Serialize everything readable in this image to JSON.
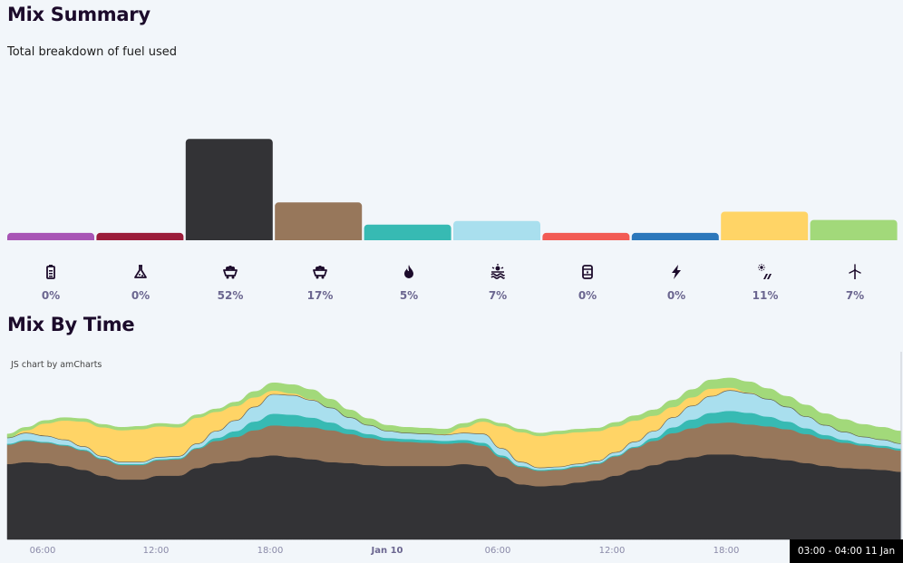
{
  "summary": {
    "title": "Mix Summary",
    "subtitle": "Total breakdown of fuel used"
  },
  "time": {
    "title": "Mix By Time",
    "credit": "JS chart by amCharts",
    "x_ticks": [
      "06:00",
      "12:00",
      "18:00",
      "Jan 10",
      "06:00",
      "12:00",
      "18:00"
    ],
    "tooltip": "03:00 - 04:00 11 Jan"
  },
  "fuels": [
    {
      "icon": "battery-icon",
      "color": "#a855b5",
      "percent": "0%"
    },
    {
      "icon": "flask-icon",
      "color": "#9b1c3a",
      "percent": "0%"
    },
    {
      "icon": "coal-cart-icon",
      "color": "#333336",
      "percent": "52%"
    },
    {
      "icon": "coal-cart-icon",
      "color": "#97775b",
      "percent": "17%"
    },
    {
      "icon": "flame-icon",
      "color": "#37bab3",
      "percent": "5%"
    },
    {
      "icon": "water-wave-icon",
      "color": "#a9dfee",
      "percent": "7%"
    },
    {
      "icon": "fuel-barrel-icon",
      "color": "#f25b54",
      "percent": "0%"
    },
    {
      "icon": "lightning-icon",
      "color": "#2c77bb",
      "percent": "0%"
    },
    {
      "icon": "solar-panel-icon",
      "color": "#ffd466",
      "percent": "11%"
    },
    {
      "icon": "wind-turbine-icon",
      "color": "#a2d97a",
      "percent": "7%"
    }
  ],
  "chart_data": [
    {
      "type": "bar",
      "categories": [
        "",
        "",
        "",
        "",
        "",
        "",
        "",
        "",
        "",
        ""
      ],
      "values": [
        0.8,
        0.8,
        11.0,
        4.1,
        1.7,
        2.1,
        0.8,
        0.8,
        3.1,
        2.2
      ],
      "ylim": [
        0,
        12
      ],
      "grid": false,
      "legend": "none"
    },
    {
      "type": "area",
      "stacked": true,
      "x": [
        "05:00",
        "06:00",
        "07:00",
        "08:00",
        "09:00",
        "10:00",
        "11:00",
        "12:00",
        "13:00",
        "14:00",
        "15:00",
        "16:00",
        "17:00",
        "18:00",
        "19:00",
        "20:00",
        "21:00",
        "22:00",
        "23:00",
        "00:00",
        "01:00",
        "02:00",
        "03:00",
        "04:00",
        "05:00",
        "06:00",
        "07:00",
        "08:00",
        "09:00",
        "10:00",
        "11:00",
        "12:00",
        "13:00",
        "14:00",
        "15:00",
        "16:00",
        "17:00",
        "18:00",
        "19:00",
        "20:00",
        "21:00",
        "22:00",
        "23:00",
        "00:00",
        "01:00",
        "02:00",
        "03:00",
        "04:00"
      ],
      "series": [
        {
          "color": "#333336",
          "values": [
            7.8,
            8.0,
            7.9,
            7.6,
            7.2,
            6.6,
            6.2,
            6.2,
            6.6,
            6.6,
            7.4,
            7.9,
            8.1,
            8.5,
            8.7,
            8.5,
            8.3,
            8.0,
            7.9,
            7.7,
            7.6,
            7.6,
            7.6,
            7.6,
            7.8,
            7.6,
            6.5,
            5.7,
            5.5,
            5.6,
            5.9,
            6.1,
            6.6,
            7.2,
            7.7,
            8.2,
            8.5,
            8.8,
            8.8,
            8.6,
            8.4,
            8.2,
            7.9,
            7.6,
            7.4,
            7.3,
            7.2,
            7.0
          ]
        },
        {
          "color": "#97775b",
          "values": [
            2.0,
            2.2,
            2.1,
            2.1,
            2.0,
            1.7,
            1.5,
            1.5,
            1.6,
            1.7,
            2.0,
            2.3,
            2.5,
            2.8,
            3.1,
            3.2,
            3.3,
            3.3,
            3.0,
            2.8,
            2.6,
            2.5,
            2.4,
            2.3,
            2.2,
            2.1,
            2.0,
            1.8,
            1.6,
            1.6,
            1.6,
            1.7,
            2.0,
            2.3,
            2.5,
            2.8,
            3.0,
            3.2,
            3.3,
            3.3,
            3.3,
            3.2,
            3.0,
            2.8,
            2.6,
            2.4,
            2.3,
            2.2
          ]
        },
        {
          "color": "#37bab3",
          "values": [
            0.1,
            0.1,
            0.1,
            0.1,
            0.1,
            0.1,
            0.1,
            0.1,
            0.1,
            0.1,
            0.1,
            0.3,
            0.6,
            0.9,
            1.2,
            1.2,
            1.0,
            0.8,
            0.5,
            0.4,
            0.3,
            0.3,
            0.3,
            0.3,
            0.3,
            0.3,
            0.2,
            0.1,
            0.1,
            0.1,
            0.1,
            0.1,
            0.1,
            0.1,
            0.3,
            0.6,
            0.9,
            1.1,
            1.2,
            1.2,
            1.0,
            0.8,
            0.6,
            0.4,
            0.3,
            0.2,
            0.2,
            0.2
          ]
        },
        {
          "color": "#a9dfee",
          "values": [
            0.6,
            0.7,
            0.6,
            0.5,
            0.3,
            0.2,
            0.2,
            0.2,
            0.2,
            0.2,
            0.4,
            0.7,
            1.1,
            1.5,
            2.0,
            2.0,
            1.8,
            1.5,
            1.2,
            0.9,
            0.7,
            0.6,
            0.6,
            0.6,
            0.7,
            0.9,
            0.7,
            0.4,
            0.2,
            0.2,
            0.2,
            0.2,
            0.3,
            0.5,
            0.7,
            1.0,
            1.4,
            1.7,
            2.1,
            2.0,
            1.8,
            1.5,
            1.2,
            1.0,
            0.8,
            0.7,
            0.6,
            0.5
          ]
        },
        {
          "color": "#ffd466",
          "values": [
            0.0,
            0.3,
            1.3,
            2.0,
            2.6,
            3.0,
            3.3,
            3.4,
            3.2,
            3.0,
            2.7,
            2.0,
            1.5,
            1.0,
            0.4,
            0.2,
            0.1,
            0.0,
            0.0,
            0.0,
            0.0,
            0.0,
            0.0,
            0.1,
            0.6,
            1.3,
            2.3,
            3.1,
            3.3,
            3.4,
            3.3,
            3.1,
            2.7,
            2.2,
            1.6,
            1.1,
            0.9,
            0.8,
            0.3,
            0.1,
            0.0,
            0.0,
            0.0,
            0.0,
            0.0,
            0.0,
            0.0,
            0.0
          ]
        },
        {
          "color": "#a2d97a",
          "values": [
            0.4,
            0.3,
            0.3,
            0.3,
            0.3,
            0.3,
            0.3,
            0.3,
            0.3,
            0.3,
            0.3,
            0.3,
            0.4,
            0.6,
            0.8,
            0.9,
            1.0,
            0.9,
            0.8,
            0.7,
            0.6,
            0.6,
            0.6,
            0.5,
            0.4,
            0.3,
            0.3,
            0.3,
            0.3,
            0.3,
            0.3,
            0.3,
            0.4,
            0.5,
            0.6,
            0.7,
            0.8,
            0.9,
            1.0,
            1.1,
            1.1,
            1.1,
            1.2,
            1.2,
            1.3,
            1.3,
            1.3,
            1.3
          ]
        }
      ],
      "ylim": [
        0,
        18
      ],
      "grid": false,
      "legend": "none"
    }
  ]
}
